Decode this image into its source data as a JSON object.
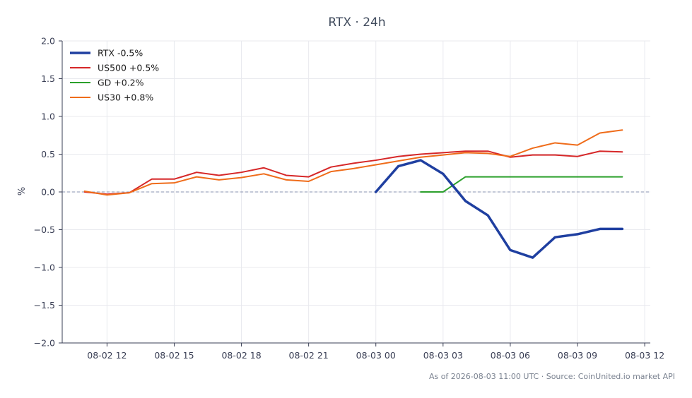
{
  "chart_data": {
    "type": "line",
    "title": "RTX · 24h",
    "ylabel": "%",
    "xlabel": "",
    "ylim": [
      -2.0,
      2.0
    ],
    "yticks": [
      -2.0,
      -1.5,
      -1.0,
      -0.5,
      0.0,
      0.5,
      1.0,
      1.5,
      2.0
    ],
    "ytick_labels": [
      "−2.0",
      "−1.5",
      "−1.0",
      "−0.5",
      "0.0",
      "0.5",
      "1.0",
      "1.5",
      "2.0"
    ],
    "xlim": [
      "2026-08-02 10:00",
      "2026-08-03 12:15"
    ],
    "xticks": [
      "2026-08-02 12:00",
      "2026-08-02 15:00",
      "2026-08-02 18:00",
      "2026-08-02 21:00",
      "2026-08-03 00:00",
      "2026-08-03 03:00",
      "2026-08-03 06:00",
      "2026-08-03 09:00",
      "2026-08-03 12:00"
    ],
    "xtick_labels": [
      "08-02 12",
      "08-02 15",
      "08-02 18",
      "08-02 21",
      "08-03 00",
      "08-03 03",
      "08-03 06",
      "08-03 09",
      "08-03 12"
    ],
    "grid": true,
    "baseline": 0.0,
    "legend_position": "top-left",
    "series": [
      {
        "name": "RTX -0.5%",
        "color": "#1f3fa0",
        "width": 3.5,
        "x": [
          "2026-08-03 00:00",
          "2026-08-03 01:00",
          "2026-08-03 02:00",
          "2026-08-03 03:00",
          "2026-08-03 04:00",
          "2026-08-03 05:00",
          "2026-08-03 06:00",
          "2026-08-03 07:00",
          "2026-08-03 08:00",
          "2026-08-03 09:00",
          "2026-08-03 10:00",
          "2026-08-03 11:00"
        ],
        "values": [
          0.0,
          0.34,
          0.42,
          0.24,
          -0.12,
          -0.31,
          -0.77,
          -0.87,
          -0.6,
          -0.56,
          -0.49,
          -0.49
        ]
      },
      {
        "name": "US500 +0.5%",
        "color": "#d62728",
        "width": 2,
        "x": [
          "2026-08-02 11:00",
          "2026-08-02 12:00",
          "2026-08-02 13:00",
          "2026-08-02 14:00",
          "2026-08-02 15:00",
          "2026-08-02 16:00",
          "2026-08-02 17:00",
          "2026-08-02 18:00",
          "2026-08-02 19:00",
          "2026-08-02 20:00",
          "2026-08-02 21:00",
          "2026-08-02 22:00",
          "2026-08-02 23:00",
          "2026-08-03 00:00",
          "2026-08-03 01:00",
          "2026-08-03 02:00",
          "2026-08-03 03:00",
          "2026-08-03 04:00",
          "2026-08-03 05:00",
          "2026-08-03 06:00",
          "2026-08-03 07:00",
          "2026-08-03 08:00",
          "2026-08-03 09:00",
          "2026-08-03 10:00",
          "2026-08-03 11:00"
        ],
        "values": [
          0.0,
          -0.03,
          -0.01,
          0.17,
          0.17,
          0.26,
          0.22,
          0.26,
          0.32,
          0.22,
          0.2,
          0.33,
          0.38,
          0.42,
          0.47,
          0.5,
          0.52,
          0.54,
          0.54,
          0.46,
          0.49,
          0.49,
          0.47,
          0.54,
          0.53
        ]
      },
      {
        "name": "GD +0.2%",
        "color": "#2ca02c",
        "width": 2,
        "x": [
          "2026-08-03 02:00",
          "2026-08-03 03:00",
          "2026-08-03 04:00",
          "2026-08-03 05:00",
          "2026-08-03 06:00",
          "2026-08-03 07:00",
          "2026-08-03 08:00",
          "2026-08-03 09:00",
          "2026-08-03 10:00",
          "2026-08-03 11:00"
        ],
        "values": [
          0.0,
          0.0,
          0.2,
          0.2,
          0.2,
          0.2,
          0.2,
          0.2,
          0.2,
          0.2
        ]
      },
      {
        "name": "US30 +0.8%",
        "color": "#ef6c1a",
        "width": 2,
        "x": [
          "2026-08-02 11:00",
          "2026-08-02 12:00",
          "2026-08-02 13:00",
          "2026-08-02 14:00",
          "2026-08-02 15:00",
          "2026-08-02 16:00",
          "2026-08-02 17:00",
          "2026-08-02 18:00",
          "2026-08-02 19:00",
          "2026-08-02 20:00",
          "2026-08-02 21:00",
          "2026-08-02 22:00",
          "2026-08-02 23:00",
          "2026-08-03 00:00",
          "2026-08-03 01:00",
          "2026-08-03 02:00",
          "2026-08-03 03:00",
          "2026-08-03 04:00",
          "2026-08-03 05:00",
          "2026-08-03 06:00",
          "2026-08-03 07:00",
          "2026-08-03 08:00",
          "2026-08-03 09:00",
          "2026-08-03 10:00",
          "2026-08-03 11:00"
        ],
        "values": [
          0.01,
          -0.04,
          -0.01,
          0.11,
          0.12,
          0.2,
          0.16,
          0.19,
          0.24,
          0.16,
          0.14,
          0.27,
          0.31,
          0.36,
          0.41,
          0.46,
          0.49,
          0.52,
          0.51,
          0.47,
          0.58,
          0.65,
          0.62,
          0.78,
          0.82
        ]
      }
    ]
  },
  "footer_text": "As of 2026-08-03 11:00 UTC · Source: CoinUnited.io market API",
  "colors": {
    "axis": "#3a3f55",
    "grid": "#e8e9ee",
    "baseline": "#8a93b0"
  }
}
